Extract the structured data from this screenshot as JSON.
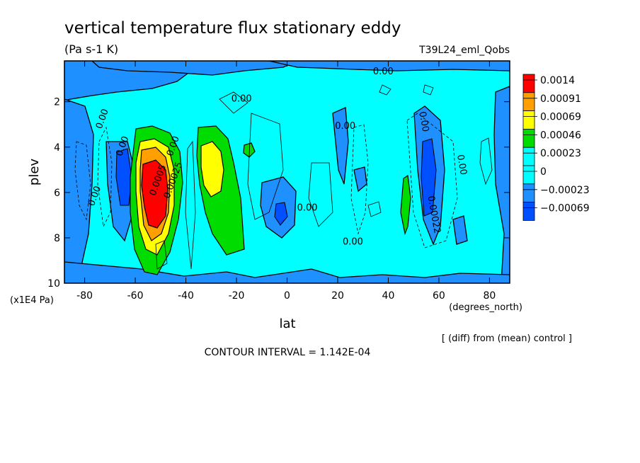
{
  "chart_data": {
    "type": "heatmap",
    "title": "vertical temperature flux stationary eddy",
    "units": "(Pa s-1 K)",
    "run_label": "T39L24_eml_Qobs",
    "xlabel": "lat",
    "x_units": "(degrees_north)",
    "ylabel": "plev",
    "y_units": "(x1E4 Pa)",
    "x_ticks": [
      "-80",
      "-60",
      "-40",
      "-20",
      "0",
      "20",
      "40",
      "60",
      "80"
    ],
    "y_ticks": [
      "2",
      "4",
      "6",
      "8",
      "10"
    ],
    "xlim": [
      -88,
      88
    ],
    "ylim": [
      0.2,
      10
    ],
    "y_inverted": true,
    "legend": {
      "placement": "right",
      "levels": [
        "0.0014",
        "0.00091",
        "0.00069",
        "0.00046",
        "0.00023",
        "0",
        "−0.00023",
        "−0.00069"
      ],
      "colors": [
        "#ff0000",
        "#ff9f00",
        "#ffff00",
        "#00dc00",
        "#00ffff",
        "#00ffff",
        "#1e90ff",
        "#0050ff"
      ]
    },
    "contour_labels": [
      {
        "text": "0.00",
        "lat": 38,
        "plev": 0.8
      },
      {
        "text": "0.00",
        "lat": -18,
        "plev": 2.0
      },
      {
        "text": "0.00",
        "lat": -72,
        "plev": 2.8
      },
      {
        "text": "0.00",
        "lat": -64,
        "plev": 4.0
      },
      {
        "text": "0.00",
        "lat": -44,
        "plev": 4.0
      },
      {
        "text": "0.00",
        "lat": -75,
        "plev": 6.2
      },
      {
        "text": "0.00",
        "lat": 23,
        "plev": 3.2
      },
      {
        "text": "0.00",
        "lat": 53,
        "plev": 2.9
      },
      {
        "text": "0.00",
        "lat": 8,
        "plev": 6.8
      },
      {
        "text": "0.00",
        "lat": 26,
        "plev": 8.3
      },
      {
        "text": "0.00",
        "lat": 68,
        "plev": 4.8
      },
      {
        "text": "0.00022",
        "lat": 57,
        "plev": 7.0
      },
      {
        "text": "0.0005",
        "lat": -50,
        "plev": 5.5
      },
      {
        "text": "0.00025",
        "lat": -44,
        "plev": 5.5
      }
    ],
    "footer": "CONTOUR INTERVAL = 1.142E-04",
    "note": "[ (diff) from (mean) control ]"
  }
}
